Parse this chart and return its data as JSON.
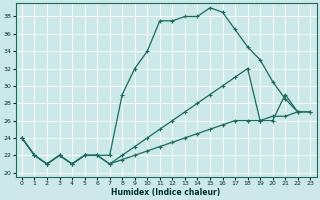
{
  "xlabel": "Humidex (Indice chaleur)",
  "xlim": [
    -0.5,
    23.5
  ],
  "ylim": [
    19.5,
    39.5
  ],
  "yticks": [
    20,
    22,
    24,
    26,
    28,
    30,
    32,
    34,
    36,
    38
  ],
  "xticks": [
    0,
    1,
    2,
    3,
    4,
    5,
    6,
    7,
    8,
    9,
    10,
    11,
    12,
    13,
    14,
    15,
    16,
    17,
    18,
    19,
    20,
    21,
    22,
    23
  ],
  "bg_color": "#cce8e8",
  "grid_color": "#b8d8d8",
  "line_color": "#1a6b5a",
  "line1_x": [
    0,
    1,
    2,
    3,
    4,
    5,
    6,
    7,
    8,
    9,
    10,
    11,
    12,
    13,
    14,
    15,
    16,
    17,
    18,
    19,
    20,
    21,
    22
  ],
  "line1_y": [
    24,
    22,
    21,
    22,
    21,
    22,
    22,
    22,
    29,
    32,
    34,
    37.5,
    37.5,
    38,
    38,
    39,
    38.5,
    36.5,
    34.5,
    33,
    30.5,
    28.5,
    27
  ],
  "line2_x": [
    0,
    1,
    2,
    3,
    4,
    5,
    6,
    7,
    8,
    9,
    10,
    11,
    12,
    13,
    14,
    15,
    16,
    17,
    18,
    19,
    20,
    21,
    22,
    23
  ],
  "line2_y": [
    24,
    22,
    21,
    22,
    21,
    22,
    22,
    21,
    22,
    23,
    24,
    25,
    26,
    27,
    28,
    29,
    30,
    31,
    32,
    26,
    26,
    29,
    27,
    27
  ],
  "line3_x": [
    0,
    1,
    2,
    3,
    4,
    5,
    6,
    7,
    8,
    9,
    10,
    11,
    12,
    13,
    14,
    15,
    16,
    17,
    18,
    19,
    20,
    21,
    22,
    23
  ],
  "line3_y": [
    24,
    22,
    21,
    22,
    21,
    22,
    22,
    21,
    21.5,
    22,
    22.5,
    23,
    23.5,
    24,
    24.5,
    25,
    25.5,
    26,
    26,
    26,
    26.5,
    26.5,
    27,
    27
  ]
}
